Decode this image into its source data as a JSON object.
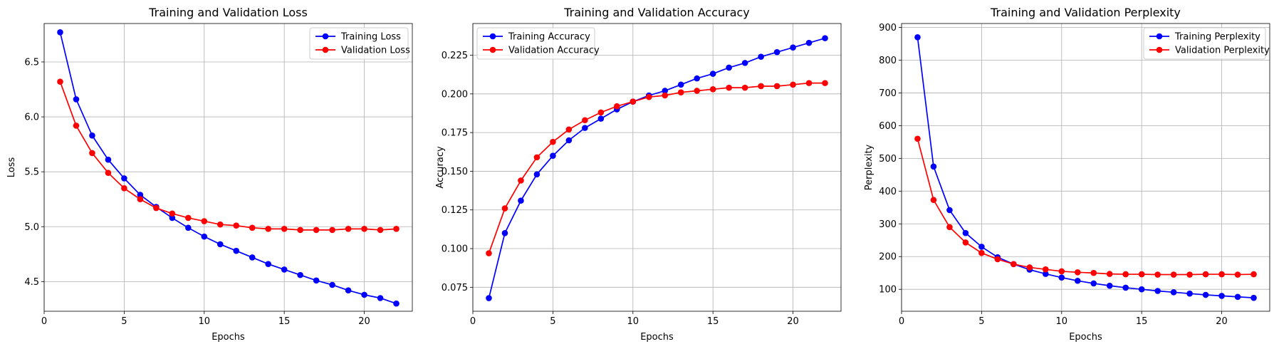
{
  "colors": {
    "training": "#0000ff",
    "validation": "#ff0000",
    "grid": "#b0b0b0"
  },
  "chart_data": [
    {
      "type": "line",
      "title": "Training and Validation Loss",
      "xlabel": "Epochs",
      "ylabel": "Loss",
      "xlim": [
        0,
        23
      ],
      "ylim": [
        4.23,
        6.85
      ],
      "xticks": [
        0,
        5,
        10,
        15,
        20
      ],
      "yticks": [
        4.5,
        5.0,
        5.5,
        6.0,
        6.5
      ],
      "ytick_labels": [
        "4.5",
        "5.0",
        "5.5",
        "6.0",
        "6.5"
      ],
      "grid": true,
      "legend_position": "upper right",
      "x": [
        1,
        2,
        3,
        4,
        5,
        6,
        7,
        8,
        9,
        10,
        11,
        12,
        13,
        14,
        15,
        16,
        17,
        18,
        19,
        20,
        21,
        22
      ],
      "series": [
        {
          "name": "Training Loss",
          "color": "#0000ff",
          "values": [
            6.77,
            6.16,
            5.83,
            5.61,
            5.44,
            5.29,
            5.18,
            5.08,
            4.99,
            4.91,
            4.84,
            4.78,
            4.72,
            4.66,
            4.61,
            4.56,
            4.51,
            4.47,
            4.42,
            4.38,
            4.35,
            4.3
          ]
        },
        {
          "name": "Validation Loss",
          "color": "#ff0000",
          "values": [
            6.32,
            5.92,
            5.67,
            5.49,
            5.35,
            5.25,
            5.17,
            5.12,
            5.08,
            5.05,
            5.02,
            5.01,
            4.99,
            4.98,
            4.98,
            4.97,
            4.97,
            4.97,
            4.98,
            4.98,
            4.97,
            4.98
          ]
        }
      ]
    },
    {
      "type": "line",
      "title": "Training and Validation Accuracy",
      "xlabel": "Epochs",
      "ylabel": "Accuracy",
      "xlim": [
        0,
        23
      ],
      "ylim": [
        0.0595,
        0.2455
      ],
      "xticks": [
        0,
        5,
        10,
        15,
        20
      ],
      "yticks": [
        0.075,
        0.1,
        0.125,
        0.15,
        0.175,
        0.2,
        0.225
      ],
      "ytick_labels": [
        "0.075",
        "0.100",
        "0.125",
        "0.150",
        "0.175",
        "0.200",
        "0.225"
      ],
      "grid": true,
      "legend_position": "upper left",
      "x": [
        1,
        2,
        3,
        4,
        5,
        6,
        7,
        8,
        9,
        10,
        11,
        12,
        13,
        14,
        15,
        16,
        17,
        18,
        19,
        20,
        21,
        22
      ],
      "series": [
        {
          "name": "Training Accuracy",
          "color": "#0000ff",
          "values": [
            0.068,
            0.11,
            0.131,
            0.148,
            0.16,
            0.17,
            0.178,
            0.184,
            0.19,
            0.195,
            0.199,
            0.202,
            0.206,
            0.21,
            0.213,
            0.217,
            0.22,
            0.224,
            0.227,
            0.23,
            0.233,
            0.236
          ]
        },
        {
          "name": "Validation Accuracy",
          "color": "#ff0000",
          "values": [
            0.097,
            0.126,
            0.144,
            0.159,
            0.169,
            0.177,
            0.183,
            0.188,
            0.192,
            0.195,
            0.198,
            0.199,
            0.201,
            0.202,
            0.203,
            0.204,
            0.204,
            0.205,
            0.205,
            0.206,
            0.207,
            0.207
          ]
        }
      ]
    },
    {
      "type": "line",
      "title": "Training and Validation Perplexity",
      "xlabel": "Epochs",
      "ylabel": "Perplexity",
      "xlim": [
        0,
        23
      ],
      "ylim": [
        33,
        912
      ],
      "xticks": [
        0,
        5,
        10,
        15,
        20
      ],
      "yticks": [
        100,
        200,
        300,
        400,
        500,
        600,
        700,
        800,
        900
      ],
      "ytick_labels": [
        "100",
        "200",
        "300",
        "400",
        "500",
        "600",
        "700",
        "800",
        "900"
      ],
      "grid": true,
      "legend_position": "upper right",
      "x": [
        1,
        2,
        3,
        4,
        5,
        6,
        7,
        8,
        9,
        10,
        11,
        12,
        13,
        14,
        15,
        16,
        17,
        18,
        19,
        20,
        21,
        22
      ],
      "series": [
        {
          "name": "Training Perplexity",
          "color": "#0000ff",
          "values": [
            870,
            475,
            342,
            272,
            230,
            198,
            177,
            160,
            147,
            136,
            126,
            118,
            111,
            105,
            100,
            95,
            91,
            87,
            83,
            80,
            77,
            74
          ]
        },
        {
          "name": "Validation Perplexity",
          "color": "#ff0000",
          "values": [
            560,
            373,
            290,
            243,
            211,
            192,
            177,
            167,
            161,
            155,
            152,
            150,
            147,
            146,
            146,
            145,
            145,
            145,
            146,
            146,
            145,
            146
          ]
        }
      ]
    }
  ]
}
